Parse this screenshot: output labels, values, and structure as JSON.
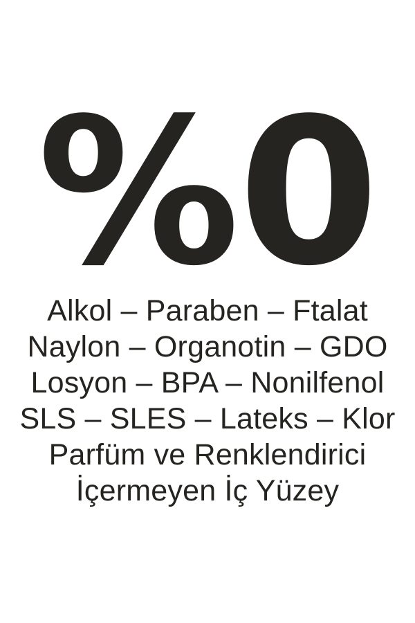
{
  "colors": {
    "background": "#ffffff",
    "ink": "#262420"
  },
  "headline": {
    "text": "%0",
    "meaning": "0 percent"
  },
  "free_from_lines": [
    "Alkol – Paraben – Ftalat",
    "Naylon – Organotin – GDO",
    "Losyon – BPA – Nonilfenol",
    "SLS – SLES – Lateks – Klor",
    "Parfüm ve Renklendirici",
    "İçermeyen İç Yüzey"
  ]
}
